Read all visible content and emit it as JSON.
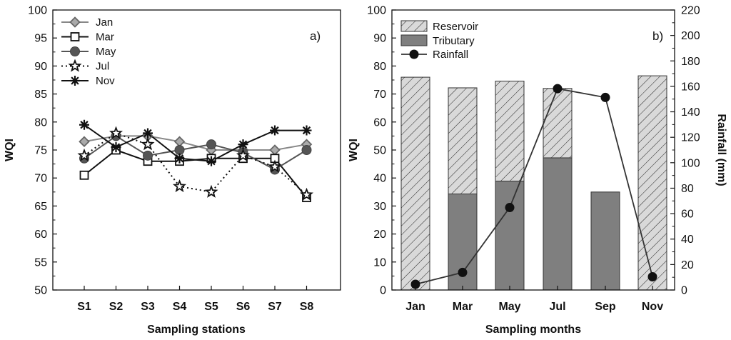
{
  "colors": {
    "jan": "#888888",
    "mar": "#111111",
    "may": "#555555",
    "jul": "#111111",
    "nov": "#111111",
    "reservoir_fill": "#d9d9d9",
    "tributary_fill": "#7f7f7f",
    "rainfall": "#111111"
  },
  "chart_data": [
    {
      "type": "line",
      "panel_label": "a)",
      "xlabel": "Sampling stations",
      "ylabel": "WQI",
      "categories": [
        "S1",
        "S2",
        "S3",
        "S4",
        "S5",
        "S6",
        "S7",
        "S8"
      ],
      "ylim": [
        50,
        100
      ],
      "yticks": [
        50,
        55,
        60,
        65,
        70,
        75,
        80,
        85,
        90,
        95,
        100
      ],
      "legend_position": "top-left",
      "series": [
        {
          "name": "Jan",
          "marker": "diamond",
          "dash": "solid",
          "values": [
            76.5,
            77.5,
            77.5,
            76.5,
            75,
            75,
            75,
            76
          ]
        },
        {
          "name": "Mar",
          "marker": "square",
          "dash": "solid",
          "values": [
            70.5,
            75,
            73,
            73,
            73.5,
            73.5,
            73.5,
            66.5
          ]
        },
        {
          "name": "May",
          "marker": "circle",
          "dash": "solid",
          "values": [
            73.5,
            77.5,
            74,
            75,
            76,
            74.5,
            71.5,
            75
          ]
        },
        {
          "name": "Jul",
          "marker": "star",
          "dash": "dotted",
          "values": [
            74,
            78,
            76,
            68.5,
            67.5,
            74,
            72,
            67
          ]
        },
        {
          "name": "Nov",
          "marker": "asterisk",
          "dash": "solid",
          "values": [
            79.5,
            75.5,
            78,
            73.5,
            73,
            76,
            78.5,
            78.5
          ]
        }
      ]
    },
    {
      "type": "bar",
      "panel_label": "b)",
      "xlabel": "Sampling months",
      "ylabel": "WQI",
      "y2label": "Rainfall (mm)",
      "categories": [
        "Jan",
        "Mar",
        "May",
        "Jul",
        "Sep",
        "Nov"
      ],
      "ylim": [
        0,
        100
      ],
      "yticks": [
        0,
        10,
        20,
        30,
        40,
        50,
        60,
        70,
        80,
        90,
        100
      ],
      "y2lim": [
        0,
        220
      ],
      "y2ticks": [
        0,
        20,
        40,
        60,
        80,
        100,
        120,
        140,
        160,
        180,
        200,
        220
      ],
      "legend_position": "top-left",
      "series": [
        {
          "name": "Reservoir",
          "style": "hatched",
          "values": [
            76,
            72.2,
            74.6,
            72,
            null,
            76.5
          ]
        },
        {
          "name": "Tributary",
          "style": "solid",
          "values": [
            null,
            34.3,
            38.9,
            47.2,
            35,
            null
          ]
        },
        {
          "name": "Rainfall",
          "style": "line-circle",
          "axis": "right",
          "values": [
            4.5,
            13.8,
            64.8,
            158.2,
            151.3,
            10.4
          ]
        }
      ]
    }
  ]
}
